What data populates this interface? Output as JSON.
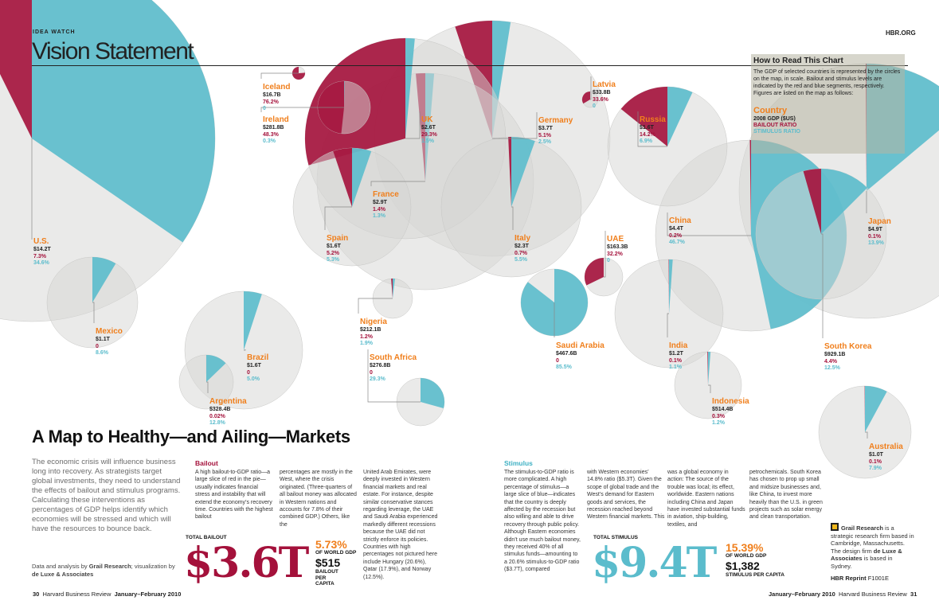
{
  "header": {
    "kicker": "IDEA WATCH",
    "section_title": "Vision Statement",
    "site": "HBR.ORG"
  },
  "how_to_read": {
    "heading": "How to Read This Chart",
    "text": "The GDP of selected countries is represented by the circles on the map, in scale. Bailout and stimulus levels are indicated by the red and blue segments, respectively. Figures are listed on the map as follows:",
    "legend_country": "Country",
    "legend_gdp": "2008 GDP ($US)",
    "legend_bailout": "BAILOUT RATIO",
    "legend_stimulus": "STIMULUS RATIO"
  },
  "colors": {
    "bailout": "#a4113b",
    "stimulus": "#5bbccc",
    "country_label": "#f07f1c",
    "circle_fill": "#d6d6d4"
  },
  "chart_data": {
    "type": "pie",
    "fields": [
      "country",
      "gdp",
      "bailout_pct",
      "stimulus_pct"
    ],
    "countries": [
      {
        "name": "U.S.",
        "gdp": "$14.2T",
        "bailout": "7.3%",
        "stimulus": "34.6%",
        "bailout_value": 7.3,
        "stimulus_value": 34.6
      },
      {
        "name": "Iceland",
        "gdp": "$16.7B",
        "bailout": "76.2%",
        "stimulus": "0",
        "bailout_value": 76.2,
        "stimulus_value": 0
      },
      {
        "name": "Ireland",
        "gdp": "$281.8B",
        "bailout": "48.3%",
        "stimulus": "0.3%",
        "bailout_value": 48.3,
        "stimulus_value": 0.3
      },
      {
        "name": "UK",
        "gdp": "$2.6T",
        "bailout": "29.3%",
        "stimulus": "1.5%",
        "bailout_value": 29.3,
        "stimulus_value": 1.5
      },
      {
        "name": "Germany",
        "gdp": "$3.7T",
        "bailout": "5.1%",
        "stimulus": "2.5%",
        "bailout_value": 5.1,
        "stimulus_value": 2.5
      },
      {
        "name": "Latvia",
        "gdp": "$33.8B",
        "bailout": "33.6%",
        "stimulus": "0",
        "bailout_value": 33.6,
        "stimulus_value": 0
      },
      {
        "name": "Russia",
        "gdp": "$1.6T",
        "bailout": "14.2%",
        "stimulus": "6.9%",
        "bailout_value": 14.2,
        "stimulus_value": 6.9
      },
      {
        "name": "France",
        "gdp": "$2.9T",
        "bailout": "1.4%",
        "stimulus": "1.3%",
        "bailout_value": 1.4,
        "stimulus_value": 1.3
      },
      {
        "name": "Spain",
        "gdp": "$1.6T",
        "bailout": "5.2%",
        "stimulus": "5.3%",
        "bailout_value": 5.2,
        "stimulus_value": 5.3
      },
      {
        "name": "Italy",
        "gdp": "$2.3T",
        "bailout": "0.7%",
        "stimulus": "5.5%",
        "bailout_value": 0.7,
        "stimulus_value": 5.5
      },
      {
        "name": "UAE",
        "gdp": "$163.3B",
        "bailout": "32.2%",
        "stimulus": "0",
        "bailout_value": 32.2,
        "stimulus_value": 0
      },
      {
        "name": "China",
        "gdp": "$4.4T",
        "bailout": "0.2%",
        "stimulus": "46.7%",
        "bailout_value": 0.2,
        "stimulus_value": 46.7
      },
      {
        "name": "Japan",
        "gdp": "$4.9T",
        "bailout": "0.1%",
        "stimulus": "13.9%",
        "bailout_value": 0.1,
        "stimulus_value": 13.9
      },
      {
        "name": "Mexico",
        "gdp": "$1.1T",
        "bailout": "0",
        "stimulus": "8.6%",
        "bailout_value": 0,
        "stimulus_value": 8.6
      },
      {
        "name": "Nigeria",
        "gdp": "$212.1B",
        "bailout": "1.2%",
        "stimulus": "1.9%",
        "bailout_value": 1.2,
        "stimulus_value": 1.9
      },
      {
        "name": "Saudi Arabia",
        "gdp": "$467.6B",
        "bailout": "0",
        "stimulus": "85.5%",
        "bailout_value": 0,
        "stimulus_value": 85.5
      },
      {
        "name": "India",
        "gdp": "$1.2T",
        "bailout": "0.1%",
        "stimulus": "1.1%",
        "bailout_value": 0.1,
        "stimulus_value": 1.1
      },
      {
        "name": "South Korea",
        "gdp": "$929.1B",
        "bailout": "4.4%",
        "stimulus": "12.5%",
        "bailout_value": 4.4,
        "stimulus_value": 12.5
      },
      {
        "name": "Brazil",
        "gdp": "$1.6T",
        "bailout": "0",
        "stimulus": "5.0%",
        "bailout_value": 0,
        "stimulus_value": 5.0
      },
      {
        "name": "South Africa",
        "gdp": "$276.8B",
        "bailout": "0",
        "stimulus": "29.3%",
        "bailout_value": 0,
        "stimulus_value": 29.3
      },
      {
        "name": "Argentina",
        "gdp": "$328.4B",
        "bailout": "0.02%",
        "stimulus": "12.8%",
        "bailout_value": 0.02,
        "stimulus_value": 12.8
      },
      {
        "name": "Indonesia",
        "gdp": "$514.4B",
        "bailout": "0.3%",
        "stimulus": "1.2%",
        "bailout_value": 0.3,
        "stimulus_value": 1.2
      },
      {
        "name": "Australia",
        "gdp": "$1.0T",
        "bailout": "0.1%",
        "stimulus": "7.9%",
        "bailout_value": 0.1,
        "stimulus_value": 7.9
      }
    ]
  },
  "article": {
    "headline": "A Map to Healthy—and Ailing—Markets",
    "intro": "The economic crisis will influence business long into recovery. As strategists target global investments, they need to understand the effects of bailout and stimulus programs. Calculating these interventions as percentages of GDP helps identify which economies will be stressed and which will have the resources to bounce back.",
    "credit_prefix": "Data and analysis by ",
    "credit_source": "Grail Research",
    "credit_mid": "; visualization by ",
    "credit_design": "de Luxe & Associates",
    "bailout_heading": "Bailout",
    "bailout_col1": "A high bailout-to-GDP ratio—a large slice of red in the pie—usually indicates financial stress and instability that will extend the economy’s recovery time. Countries with the highest bailout",
    "bailout_col2": "percentages are mostly in the West, where the crisis originated. (Three-quarters of all bailout money was allocated in Western nations and accounts for 7.8% of their combined GDP.) Others, like the",
    "bailout_col3": "United Arab Emirates, were deeply invested in Western financial markets and real estate. For instance, despite similar conservative stances regarding leverage, the UAE and Saudi Arabia experienced markedly different recessions because the UAE did not strictly enforce its policies. Countries with high percentages not pictured here include Hungary (20.6%), Qatar (17.9%), and Norway (12.5%).",
    "stimulus_heading": "Stimulus",
    "stimulus_col1": "The stimulus-to-GDP ratio is more complicated. A high percentage of stimulus—a large slice of blue—indicates that the country is deeply affected by the recession but also willing and able to drive recovery through public policy. Although Eastern economies didn’t use much bailout money, they received 40% of all stimulus funds—amounting to a 20.6% stimulus-to-GDP ratio ($3.7T), compared",
    "stimulus_col2": "with Western economies’ 14.8% ratio ($5.3T). Given the scope of global trade and the West’s demand for Eastern goods and services, the recession reached beyond Western financial markets. This",
    "stimulus_col3": "was a global economy in action: The source of the trouble was local; its effect, worldwide. Eastern nations including China and Japan have invested substantial funds in aviation, ship-building, textiles, and",
    "stimulus_col4": "petrochemicals. South Korea has chosen to prop up small and midsize businesses and, like China, to invest more heavily than the U.S. in green projects such as solar energy and clean transportation."
  },
  "totals": {
    "bailout_label": "TOTAL BAILOUT",
    "bailout_big": "$3.6T",
    "bailout_pct": "5.73%",
    "bailout_pct_label": "OF WORLD GDP",
    "bailout_percapita": "$515",
    "bailout_percapita_label": "BAILOUT PER CAPITA",
    "stimulus_label": "TOTAL STIMULUS",
    "stimulus_big": "$9.4T",
    "stimulus_pct": "15.39%",
    "stimulus_pct_label": "OF WORLD GDP",
    "stimulus_percapita": "$1,382",
    "stimulus_percapita_label": "STIMULUS PER CAPITA"
  },
  "sidebar": {
    "grail_name": "Grail Research",
    "grail_text": " is a strategic research firm based in Cambridge, Massachusetts. The design firm ",
    "design_name": "de Luxe & Associates",
    "design_text": " is based in Sydney.",
    "reprint_label": "HBR Reprint",
    "reprint_code": "F1001E"
  },
  "footer": {
    "left_page": "30",
    "left_pub": "Harvard Business Review",
    "left_date": "January–February 2010",
    "right_date": "January–February 2010",
    "right_pub": "Harvard Business Review",
    "right_page": "31"
  }
}
